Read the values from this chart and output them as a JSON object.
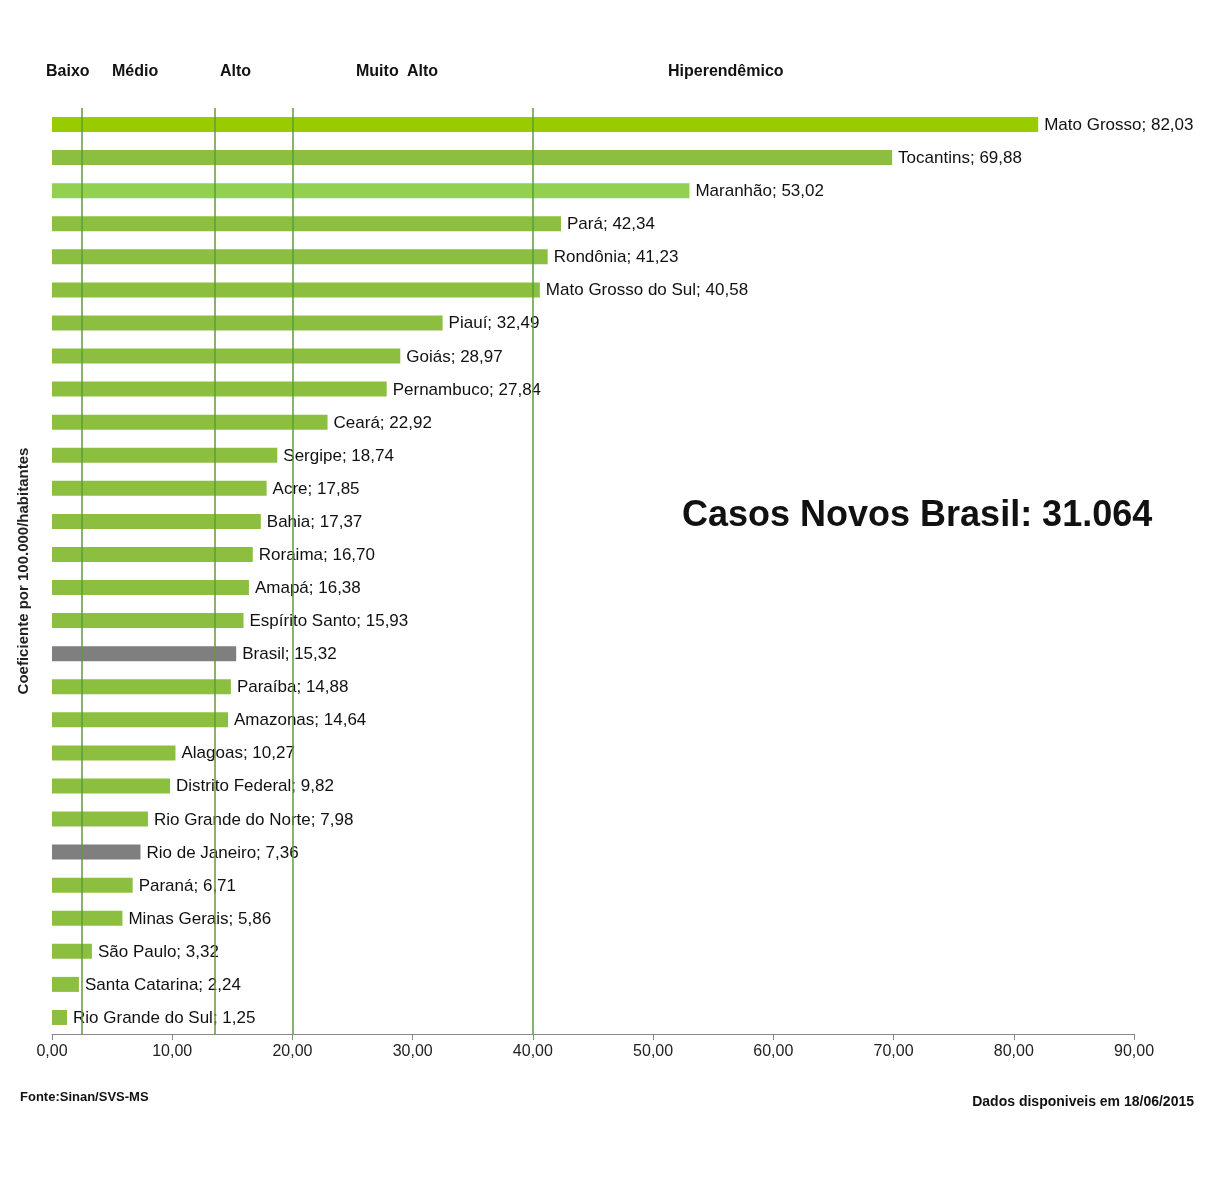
{
  "chart_data": {
    "type": "bar",
    "orientation": "horizontal",
    "ylabel": "Coeficiente por 100.000/habitantes",
    "categories": [
      null,
      null,
      null,
      null,
      null,
      null,
      null,
      null,
      null,
      null,
      null,
      null,
      null,
      null,
      null,
      null,
      null,
      null,
      null,
      null,
      null,
      null,
      null,
      null,
      null,
      null,
      null,
      null
    ],
    "values": [
      82.03,
      69.88,
      53.02,
      42.34,
      41.23,
      40.58,
      32.49,
      28.97,
      27.84,
      22.92,
      18.74,
      17.85,
      17.37,
      16.7,
      16.38,
      15.93,
      15.32,
      14.88,
      14.64,
      10.27,
      9.82,
      7.98,
      7.36,
      6.71,
      5.86,
      3.32,
      2.24,
      1.25
    ],
    "colors": [
      "#99cc00",
      "#8cbf3f",
      "#92d050",
      "#8cbf3f",
      "#8cbf3f",
      "#8cbf3f",
      "#8cbf3f",
      "#8cbf3f",
      "#8cbf3f",
      "#8cbf3f",
      "#8cbf3f",
      "#8cbf3f",
      "#8cbf3f",
      "#8cbf3f",
      "#8cbf3f",
      "#8cbf3f",
      "#7f7f7f",
      "#8cbf3f",
      "#8cbf3f",
      "#8cbf3f",
      "#8cbf3f",
      "#8cbf3f",
      "#7f7f7f",
      "#8cbf3f",
      "#8cbf3f",
      "#8cbf3f",
      "#8cbf3f",
      "#8cbf3f"
    ],
    "value_labels": [
      "Mato Grosso; 82,03",
      "Tocantins; 69,88",
      "Maranhão; 53,02",
      "Pará; 42,34",
      "Rondônia; 41,23",
      "Mato Grosso do Sul; 40,58",
      "Piauí; 32,49",
      "Goiás; 28,97",
      "Pernambuco; 27,84",
      "Ceará; 22,92",
      "Sergipe; 18,74",
      "Acre; 17,85",
      "Bahia; 17,37",
      "Roraima; 16,70",
      "Amapá; 16,38",
      "Espírito Santo; 15,93",
      "Brasil; 15,32",
      "Paraíba; 14,88",
      "Amazonas; 14,64",
      "Alagoas; 10,27",
      "Distrito Federal; 9,82",
      "Rio Grande do Norte; 7,98",
      "Rio de Janeiro; 7,36",
      "Paraná; 6,71",
      "Minas Gerais; 5,86",
      "São Paulo; 3,32",
      "Santa Catarina; 2,24",
      "Rio Grande do Sul; 1,25"
    ],
    "xlim": [
      0,
      90
    ],
    "xticks": [
      {
        "value": 0,
        "label": "0,00"
      },
      {
        "value": 10,
        "label": "10,00"
      },
      {
        "value": 20,
        "label": "20,00"
      },
      {
        "value": 30,
        "label": "30,00"
      },
      {
        "value": 40,
        "label": "40,00"
      },
      {
        "value": 50,
        "label": "50,00"
      },
      {
        "value": 60,
        "label": "60,00"
      },
      {
        "value": 70,
        "label": "70,00"
      },
      {
        "value": 80,
        "label": "80,00"
      },
      {
        "value": 90,
        "label": "90,00"
      }
    ],
    "tick_labels": "x",
    "grid": false,
    "ref_lines": [
      {
        "axis": "x",
        "value": 2.5,
        "color": "#5a9e3a"
      },
      {
        "axis": "x",
        "value": 13.5,
        "color": "#5a9e3a"
      },
      {
        "axis": "x",
        "value": 20,
        "color": "#5a9e3a"
      },
      {
        "axis": "x",
        "value": 40,
        "color": "#5a9e3a"
      }
    ],
    "annotations": [
      "Casos Novos Brasil: 31.064",
      "Fonte:Sinan/SVS-MS",
      "Dados disponiveis em 18/06/2015",
      "Baixo",
      "Médio",
      "Alto",
      "Muito  Alto",
      "Hiperendêmico"
    ]
  }
}
